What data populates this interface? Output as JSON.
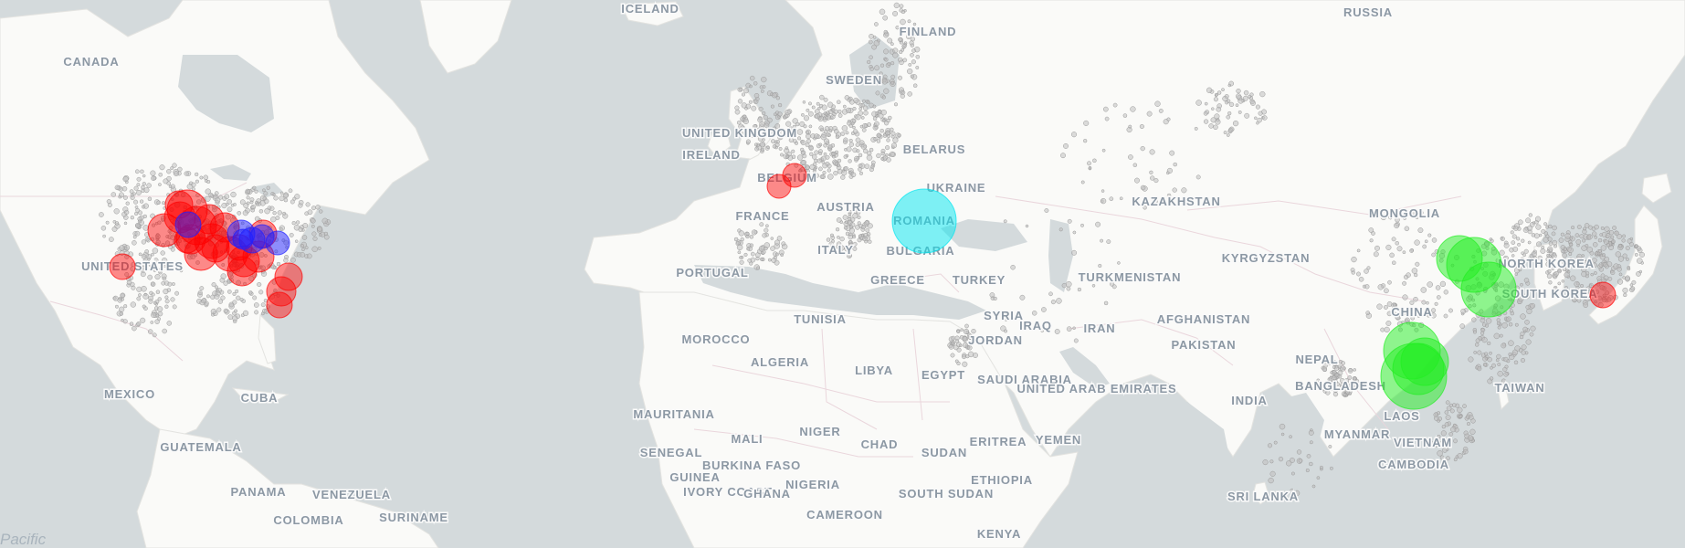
{
  "map": {
    "style": "light basemap",
    "colors": {
      "water": "#d4dadc",
      "land": "#fafaf8",
      "border": "#e6d8dc",
      "label": "#8c98a4",
      "city_dot": "#bfbfbf"
    },
    "ocean_labels": [
      "Pacific"
    ],
    "country_labels": [
      "CANADA",
      "UNITED STATES",
      "MEXICO",
      "CUBA",
      "GUATEMALA",
      "PANAMA",
      "VENEZUELA",
      "COLOMBIA",
      "SURINAME",
      "ICELAND",
      "UNITED KINGDOM",
      "IRELAND",
      "BELGIUM",
      "FRANCE",
      "PORTUGAL",
      "ITALY",
      "AUSTRIA",
      "SWEDEN",
      "FINLAND",
      "BELARUS",
      "UKRAINE",
      "ROMANIA",
      "BULGARIA",
      "GREECE",
      "TURKEY",
      "TUNISIA",
      "MOROCCO",
      "ALGERIA",
      "LIBYA",
      "EGYPT",
      "SYRIA",
      "JORDAN",
      "IRAQ",
      "IRAN",
      "SAUDI ARABIA",
      "UNITED ARAB EMIRATES",
      "YEMEN",
      "ERITREA",
      "SUDAN",
      "SOUTH SUDAN",
      "ETHIOPIA",
      "KENYA",
      "CHAD",
      "NIGER",
      "MALI",
      "MAURITANIA",
      "SENEGAL",
      "GUINEA",
      "BURKINA FASO",
      "IVORY COAST",
      "GHANA",
      "NIGERIA",
      "CAMEROON",
      "RUSSIA",
      "KAZAKHSTAN",
      "KYRGYZSTAN",
      "TURKMENISTAN",
      "AFGHANISTAN",
      "PAKISTAN",
      "INDIA",
      "NEPAL",
      "BANGLADESH",
      "SRI LANKA",
      "MYANMAR",
      "LAOS",
      "VIETNAM",
      "CAMBODIA",
      "CHINA",
      "TAIWAN",
      "MONGOLIA",
      "NORTH KOREA",
      "SOUTH KOREA"
    ],
    "bubble_colors": {
      "red": "#ff0000",
      "blue": "#2020ff",
      "cyan": "#00e5f0",
      "green": "#22ee22"
    },
    "bubble_groups": [
      {
        "color": "red",
        "region": "United States Midwest",
        "count": 22
      },
      {
        "color": "blue",
        "region": "Great Lakes",
        "count": 6
      },
      {
        "color": "red",
        "region": "Belgium",
        "count": 2
      },
      {
        "color": "cyan",
        "region": "Romania",
        "count": 1
      },
      {
        "color": "green",
        "region": "Northeast China",
        "count": 3
      },
      {
        "color": "green",
        "region": "Southwest China",
        "count": 4
      },
      {
        "color": "red",
        "region": "South Korea",
        "count": 1
      }
    ]
  }
}
